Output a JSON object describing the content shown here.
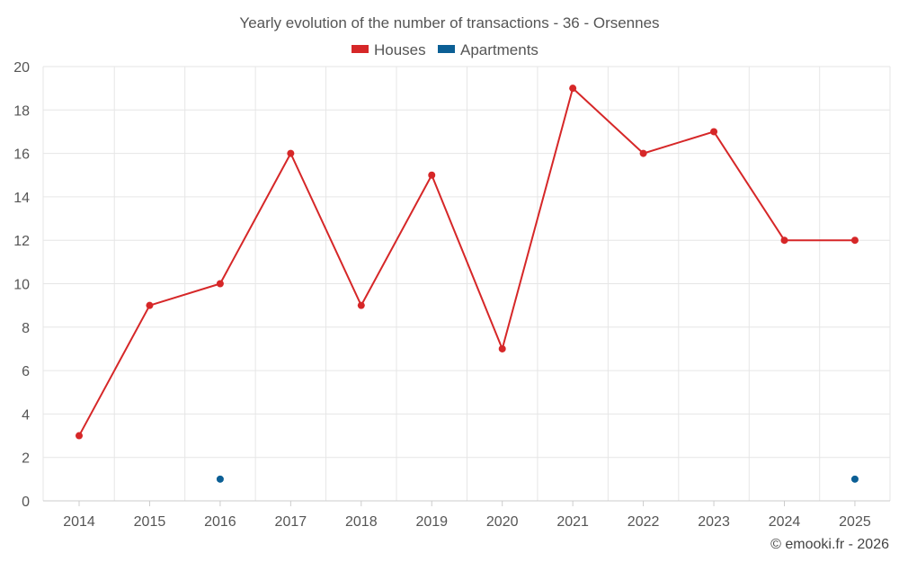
{
  "chart_data": {
    "type": "line",
    "title": "Yearly evolution of the number of transactions - 36 - Orsennes",
    "categories": [
      "2014",
      "2015",
      "2016",
      "2017",
      "2018",
      "2019",
      "2020",
      "2021",
      "2022",
      "2023",
      "2024",
      "2025"
    ],
    "ylim": [
      0,
      20
    ],
    "yticks": [
      0,
      2,
      4,
      6,
      8,
      10,
      12,
      14,
      16,
      18,
      20
    ],
    "legend_position": "top-center",
    "grid": true,
    "series": [
      {
        "name": "Houses",
        "color": "#d62728",
        "values": [
          3,
          9,
          10,
          16,
          9,
          15,
          7,
          19,
          16,
          17,
          12,
          12
        ]
      },
      {
        "name": "Apartments",
        "color": "#0b5f95",
        "values": [
          null,
          null,
          1,
          null,
          null,
          null,
          null,
          null,
          null,
          null,
          null,
          1
        ]
      }
    ]
  },
  "footer": {
    "credit": "© emooki.fr - 2026"
  }
}
